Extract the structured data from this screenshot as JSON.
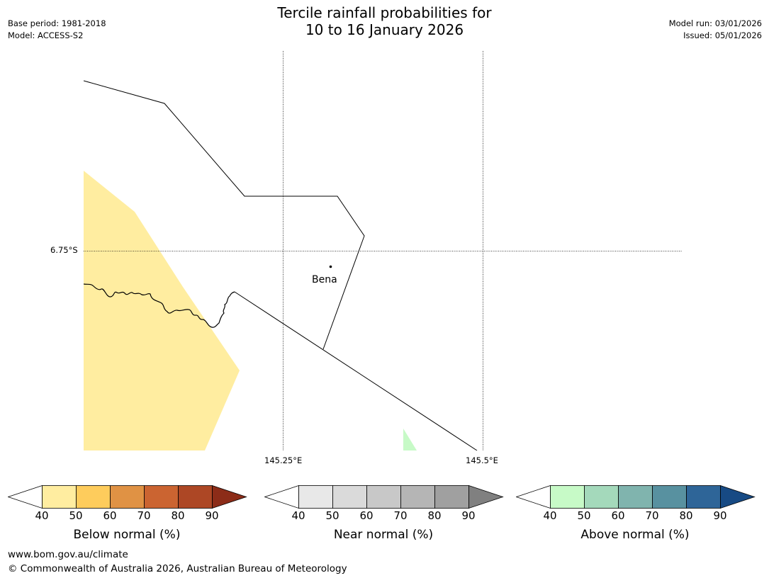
{
  "header": {
    "title_line1": "Tercile rainfall probabilities for",
    "title_line2": "10 to 16 January 2026",
    "base_period": "Base period: 1981-2018",
    "model": "Model: ACCESS-S2",
    "model_run": "Model run: 03/01/2026",
    "issued": "Issued: 05/01/2026"
  },
  "map": {
    "lat_label": "6.75°S",
    "lon_labels": [
      "145.25°E",
      "145.5°E"
    ],
    "place_label": "Bena"
  },
  "colorbars": [
    {
      "label": "Below normal (%)",
      "ticks": [
        "40",
        "50",
        "60",
        "70",
        "80",
        "90"
      ],
      "colors": [
        "#ffffff",
        "#ffeda0",
        "#fecc5c",
        "#e09244",
        "#cb6431",
        "#ad4725",
        "#8c2c18"
      ]
    },
    {
      "label": "Near normal (%)",
      "ticks": [
        "40",
        "50",
        "60",
        "70",
        "80",
        "90"
      ],
      "colors": [
        "#ffffff",
        "#e8e8e8",
        "#dadada",
        "#c8c8c8",
        "#b5b5b5",
        "#a0a0a0",
        "#808080"
      ]
    },
    {
      "label": "Above normal (%)",
      "ticks": [
        "40",
        "50",
        "60",
        "70",
        "80",
        "90"
      ],
      "colors": [
        "#ffffff",
        "#c7fac7",
        "#a4d9bb",
        "#80b4ae",
        "#5891a0",
        "#2e6598",
        "#174a84"
      ]
    }
  ],
  "footer": {
    "url": "www.bom.gov.au/climate",
    "copyright": "© Commonwealth of Australia 2026, Australian Bureau of Meteorology"
  }
}
